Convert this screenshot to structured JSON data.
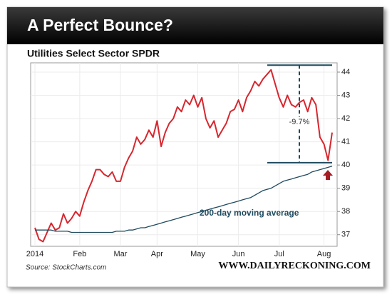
{
  "chart_data": {
    "type": "line",
    "title": "A Perfect Bounce?",
    "subtitle": "Utilities Select Sector SPDR",
    "source": "Source: StockCharts.com",
    "credit": "WWW.DAILYRECKONING.COM",
    "categories": [
      "2014",
      null,
      null,
      null,
      null,
      null,
      null,
      null,
      null,
      null,
      null,
      "Feb",
      null,
      null,
      null,
      null,
      null,
      null,
      null,
      null,
      null,
      "Mar",
      null,
      null,
      null,
      null,
      null,
      null,
      null,
      null,
      "Apr",
      null,
      null,
      null,
      null,
      null,
      null,
      null,
      null,
      null,
      "May",
      null,
      null,
      null,
      null,
      null,
      null,
      null,
      null,
      null,
      "Jun",
      null,
      null,
      null,
      null,
      null,
      null,
      null,
      null,
      null,
      "Jul",
      null,
      null,
      null,
      null,
      null,
      null,
      null,
      null,
      null,
      null,
      "Aug",
      null,
      null
    ],
    "series": [
      {
        "name": "Utilities Select Sector SPDR",
        "color": "#d7262e",
        "values": [
          37.3,
          36.8,
          36.7,
          37.1,
          37.5,
          37.2,
          37.3,
          37.9,
          37.5,
          37.7,
          38.0,
          37.8,
          38.4,
          38.9,
          39.3,
          39.8,
          39.8,
          39.6,
          39.5,
          39.7,
          39.3,
          39.3,
          39.9,
          40.3,
          40.6,
          41.2,
          40.9,
          41.1,
          41.5,
          41.2,
          41.9,
          40.8,
          41.4,
          41.8,
          42.0,
          42.5,
          42.3,
          42.8,
          42.6,
          43.0,
          42.5,
          42.9,
          42.0,
          41.6,
          41.9,
          41.2,
          41.5,
          41.8,
          42.3,
          42.4,
          42.8,
          42.3,
          42.9,
          43.2,
          43.6,
          43.4,
          43.7,
          43.9,
          44.1,
          43.5,
          42.9,
          42.5,
          43.0,
          42.6,
          42.5,
          42.7,
          42.8,
          42.3,
          42.9,
          42.6,
          41.2,
          40.9,
          40.2,
          41.4
        ]
      },
      {
        "name": "200-day moving average",
        "color": "#1f4a5e",
        "values": [
          37.2,
          37.2,
          37.2,
          37.2,
          37.2,
          37.15,
          37.15,
          37.15,
          37.15,
          37.1,
          37.1,
          37.1,
          37.1,
          37.1,
          37.1,
          37.1,
          37.1,
          37.1,
          37.1,
          37.1,
          37.15,
          37.15,
          37.15,
          37.2,
          37.2,
          37.25,
          37.3,
          37.3,
          37.35,
          37.4,
          37.45,
          37.5,
          37.55,
          37.6,
          37.65,
          37.7,
          37.75,
          37.8,
          37.85,
          37.9,
          37.95,
          38.0,
          38.05,
          38.1,
          38.15,
          38.2,
          38.25,
          38.3,
          38.35,
          38.4,
          38.45,
          38.5,
          38.55,
          38.6,
          38.7,
          38.8,
          38.9,
          38.95,
          39.0,
          39.1,
          39.2,
          39.3,
          39.35,
          39.4,
          39.45,
          39.5,
          39.55,
          39.6,
          39.7,
          39.75,
          39.8,
          39.85,
          39.9,
          39.95
        ]
      }
    ],
    "ylim": [
      36.5,
      44.4
    ],
    "yticks": [
      37,
      38,
      39,
      40,
      41,
      42,
      43,
      44
    ],
    "grid": true,
    "bracket": {
      "high": 44.3,
      "low": 40.1,
      "label": "-9.7%"
    }
  }
}
